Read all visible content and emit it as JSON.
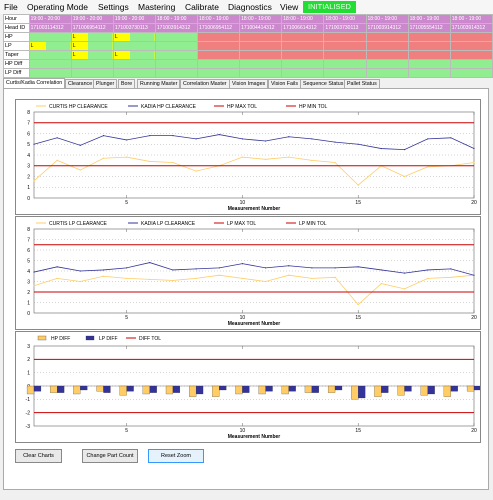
{
  "menu": [
    "File",
    "Operating Mode",
    "Settings",
    "Mastering",
    "Calibrate",
    "Diagnostics",
    "View"
  ],
  "status": "INITIALISED",
  "table": {
    "row_labels": [
      "Hour",
      "Head ID",
      "HP",
      "LP",
      "Taper",
      "HP Diff",
      "LP Diff"
    ],
    "hours": [
      "19:00 - 20:00",
      "19:00 - 20:00",
      "19:00 - 20:00",
      "18:00 - 19:00",
      "18:00 - 19:00",
      "18:00 - 19:00",
      "18:00 - 19:00",
      "18:00 - 19:00",
      "18:00 - 19:00",
      "18:00 - 19:00",
      "18:00 - 19:00"
    ],
    "head_ids": [
      "171003114312",
      "171006954112",
      "171003730113",
      "171003914312",
      "171006954112",
      "171004414312",
      "171006614312",
      "171003730113",
      "171003914312",
      "171005554112",
      "171003914312"
    ],
    "hp": [
      "",
      "L",
      "L",
      "",
      "",
      "",
      "",
      "",
      "",
      "",
      ""
    ],
    "lp": [
      "L",
      "L",
      "",
      "",
      "",
      "",
      "",
      "",
      "",
      "",
      ""
    ],
    "taper": [
      "",
      "L",
      "L",
      "",
      "",
      "",
      "",
      "",
      "",
      "",
      ""
    ],
    "colors": {
      "hour": "#cc88cc",
      "fail": "#f08080",
      "pass": "#90ee90",
      "marker": "#ffff00"
    }
  },
  "tabs": [
    "Curtis/Kadia Correlation",
    "Clearance",
    "Plunger",
    "Bore",
    "Running Master",
    "Correlation Master",
    "Vision Images",
    "Vision Fails",
    "Sequence Status",
    "Pallet Status"
  ],
  "charts": [
    {
      "xlabel": "Measurement Number",
      "x_ticks": [
        "5",
        "10",
        "15",
        "20"
      ],
      "y_ticks": [
        "8",
        "7",
        "6",
        "5",
        "4",
        "3",
        "2",
        "1",
        "0"
      ],
      "legend": [
        "CURTIS HP CLEARANCE",
        "KADIA HP CLEARANCE",
        "HP MAX TOL",
        "HP MIN TOL"
      ]
    },
    {
      "xlabel": "Measurement Number",
      "x_ticks": [
        "5",
        "10",
        "15",
        "20"
      ],
      "y_ticks": [
        "8",
        "7",
        "6",
        "5",
        "4",
        "3",
        "2",
        "1",
        "0"
      ],
      "legend": [
        "CURTIS LP CLEARANCE",
        "KADIA LP CLEARANCE",
        "LP MAX TOL",
        "LP MIN TOL"
      ]
    },
    {
      "xlabel": "Measurement Number",
      "x_ticks": [
        "5",
        "10",
        "15",
        "20"
      ],
      "y_ticks": [
        "3",
        "2",
        "1",
        "0",
        "-1",
        "-2",
        "-3"
      ],
      "legend": [
        "HP DIFF",
        "LP DIFF",
        "DIFF TOL"
      ]
    }
  ],
  "chart_data": [
    {
      "type": "line",
      "xlabel": "Measurement Number",
      "ylim": [
        0,
        8
      ],
      "x": [
        1,
        2,
        3,
        4,
        5,
        6,
        7,
        8,
        9,
        10,
        11,
        12,
        13,
        14,
        15,
        16,
        17,
        18,
        19,
        20
      ],
      "series": [
        {
          "name": "CURTIS HP CLEARANCE",
          "color": "#ffcc66",
          "values": [
            1.6,
            3.5,
            2.6,
            3.7,
            3.8,
            3.4,
            3.3,
            2.5,
            3.0,
            3.8,
            3.6,
            3.8,
            3.5,
            3.3,
            1.2,
            3.0,
            2.0,
            2.9,
            3.0,
            3.3
          ]
        },
        {
          "name": "KADIA HP CLEARANCE",
          "color": "#333399",
          "values": [
            5.0,
            5.6,
            4.9,
            5.8,
            5.4,
            5.8,
            5.8,
            5.5,
            5.9,
            5.5,
            5.3,
            5.7,
            5.5,
            5.2,
            5.0,
            4.6,
            4.5,
            5.5,
            5.6,
            4.6
          ]
        },
        {
          "name": "HP MAX TOL",
          "color": "#cc0000",
          "values": [
            7,
            7,
            7,
            7,
            7,
            7,
            7,
            7,
            7,
            7,
            7,
            7,
            7,
            7,
            7,
            7,
            7,
            7,
            7,
            7
          ]
        },
        {
          "name": "HP MIN TOL",
          "color": "#cc0000",
          "values": [
            3,
            3,
            3,
            3,
            3,
            3,
            3,
            3,
            3,
            3,
            3,
            3,
            3,
            3,
            3,
            3,
            3,
            3,
            3,
            3
          ]
        }
      ]
    },
    {
      "type": "line",
      "xlabel": "Measurement Number",
      "ylim": [
        0,
        8
      ],
      "x": [
        1,
        2,
        3,
        4,
        5,
        6,
        7,
        8,
        9,
        10,
        11,
        12,
        13,
        14,
        15,
        16,
        17,
        18,
        19,
        20
      ],
      "series": [
        {
          "name": "CURTIS LP CLEARANCE",
          "color": "#ffcc66",
          "values": [
            2.6,
            3.3,
            3.0,
            3.5,
            3.3,
            3.2,
            3.1,
            3.3,
            3.6,
            3.3,
            3.0,
            3.6,
            3.3,
            3.4,
            0.8,
            2.8,
            2.3,
            3.3,
            3.4,
            3.6
          ]
        },
        {
          "name": "KADIA LP CLEARANCE",
          "color": "#333399",
          "values": [
            3.9,
            4.4,
            4.0,
            4.1,
            4.3,
            4.8,
            4.1,
            4.2,
            4.3,
            4.7,
            4.3,
            4.5,
            4.3,
            4.3,
            4.4,
            4.1,
            3.8,
            4.1,
            4.2,
            3.6
          ]
        },
        {
          "name": "LP MAX TOL",
          "color": "#cc0000",
          "values": [
            6.5,
            6.5,
            6.5,
            6.5,
            6.5,
            6.5,
            6.5,
            6.5,
            6.5,
            6.5,
            6.5,
            6.5,
            6.5,
            6.5,
            6.5,
            6.5,
            6.5,
            6.5,
            6.5,
            6.5
          ]
        },
        {
          "name": "LP MIN TOL",
          "color": "#cc0000",
          "values": [
            2,
            2,
            2,
            2,
            2,
            2,
            2,
            2,
            2,
            2,
            2,
            2,
            2,
            2,
            2,
            2,
            2,
            2,
            2,
            2
          ]
        }
      ]
    },
    {
      "type": "bar",
      "xlabel": "Measurement Number",
      "ylim": [
        -3,
        3
      ],
      "x": [
        1,
        2,
        3,
        4,
        5,
        6,
        7,
        8,
        9,
        10,
        11,
        12,
        13,
        14,
        15,
        16,
        17,
        18,
        19,
        20
      ],
      "series": [
        {
          "name": "HP DIFF",
          "color": "#ffcc66",
          "values": [
            -0.6,
            -0.5,
            -0.6,
            -0.4,
            -0.7,
            -0.6,
            -0.6,
            -0.8,
            -0.8,
            -0.6,
            -0.6,
            -0.6,
            -0.5,
            -0.5,
            -1.0,
            -0.8,
            -0.7,
            -0.7,
            -0.8,
            -0.4
          ]
        },
        {
          "name": "LP DIFF",
          "color": "#333399",
          "values": [
            -0.4,
            -0.5,
            -0.3,
            -0.5,
            -0.4,
            -0.5,
            -0.5,
            -0.6,
            -0.3,
            -0.5,
            -0.4,
            -0.4,
            -0.5,
            -0.3,
            -0.9,
            -0.5,
            -0.4,
            -0.6,
            -0.4,
            -0.3
          ]
        },
        {
          "name": "DIFF TOL",
          "color": "#cc0000",
          "values": [
            2,
            2,
            2,
            2,
            2,
            2,
            2,
            2,
            2,
            2,
            2,
            2,
            2,
            2,
            2,
            2,
            2,
            2,
            2,
            2
          ]
        }
      ]
    }
  ],
  "buttons": {
    "clear": "Clear Charts",
    "change": "Change Part Count",
    "reset": "Reset Zoom"
  }
}
